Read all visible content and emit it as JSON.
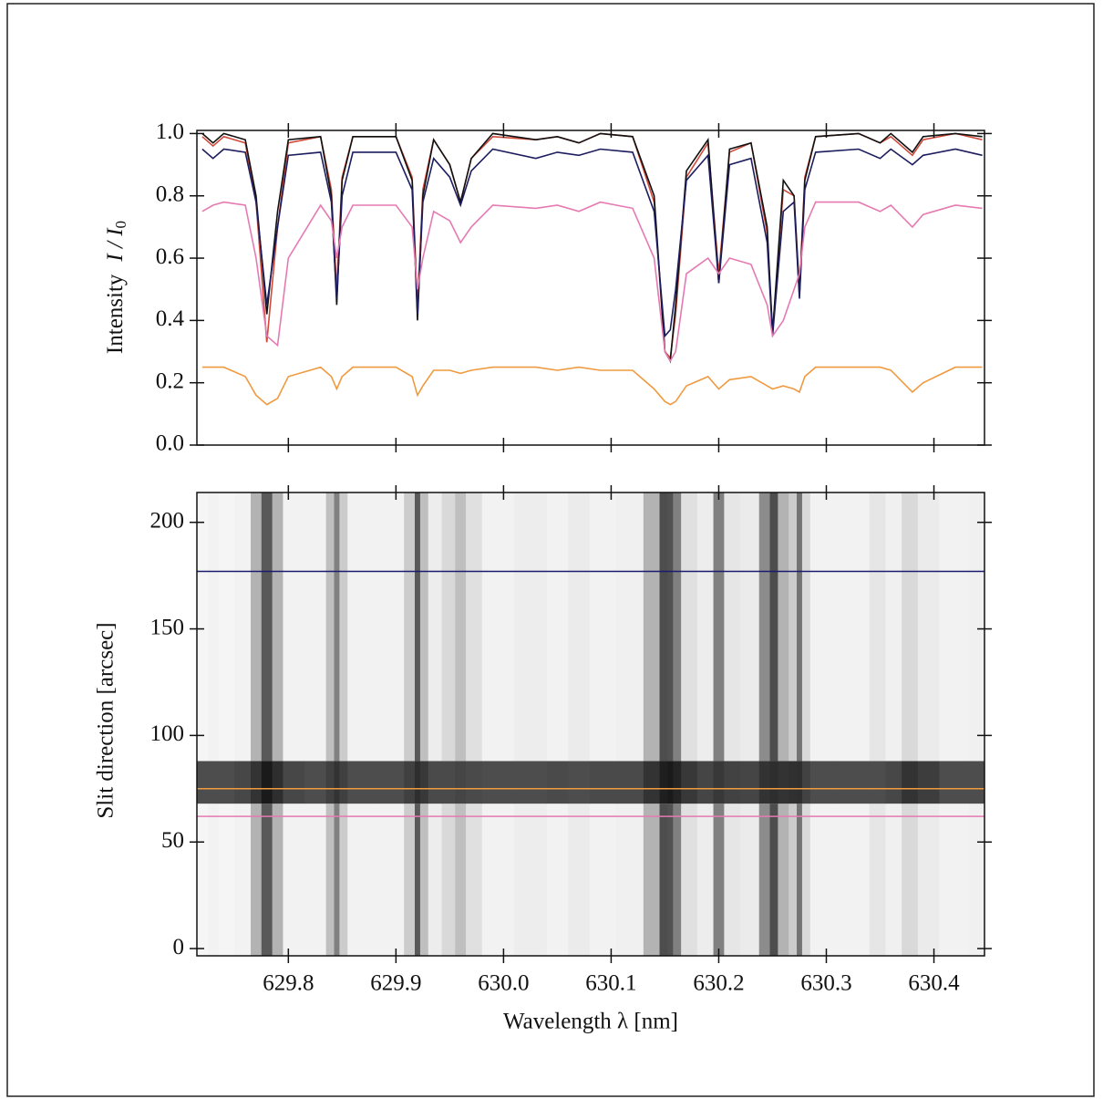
{
  "chart_data": [
    {
      "type": "line",
      "ylabel": "Intensity",
      "ylabel_symbol": "I / I",
      "ylabel_subscript": "0",
      "x": [
        629.72,
        629.73,
        629.74,
        629.76,
        629.77,
        629.78,
        629.79,
        629.8,
        629.83,
        629.84,
        629.845,
        629.85,
        629.86,
        629.9,
        629.915,
        629.92,
        629.925,
        629.935,
        629.95,
        629.96,
        629.97,
        629.99,
        630.03,
        630.05,
        630.07,
        630.09,
        630.12,
        630.14,
        630.15,
        630.155,
        630.16,
        630.17,
        630.19,
        630.2,
        630.21,
        630.23,
        630.245,
        630.25,
        630.26,
        630.27,
        630.275,
        630.28,
        630.29,
        630.33,
        630.35,
        630.36,
        630.38,
        630.39,
        630.42,
        630.445
      ],
      "series": [
        {
          "color": "#d04a3a",
          "values": [
            0.99,
            0.96,
            0.99,
            0.97,
            0.78,
            0.33,
            0.7,
            0.97,
            0.99,
            0.82,
            0.5,
            0.86,
            0.99,
            0.99,
            0.86,
            0.45,
            0.82,
            0.98,
            0.9,
            0.78,
            0.92,
            0.99,
            0.98,
            0.99,
            0.97,
            1.0,
            0.99,
            0.78,
            0.3,
            0.28,
            0.42,
            0.86,
            0.97,
            0.55,
            0.94,
            0.97,
            0.68,
            0.36,
            0.82,
            0.8,
            0.5,
            0.86,
            0.99,
            1.0,
            0.97,
            0.99,
            0.93,
            0.98,
            1.0,
            0.98
          ]
        },
        {
          "color": "#111111",
          "values": [
            1.0,
            0.97,
            1.0,
            0.98,
            0.8,
            0.42,
            0.75,
            0.98,
            0.99,
            0.8,
            0.45,
            0.85,
            0.99,
            0.99,
            0.85,
            0.4,
            0.8,
            0.98,
            0.9,
            0.78,
            0.92,
            1.0,
            0.98,
            0.99,
            0.97,
            1.0,
            0.99,
            0.8,
            0.3,
            0.27,
            0.45,
            0.88,
            0.98,
            0.52,
            0.95,
            0.97,
            0.7,
            0.36,
            0.85,
            0.8,
            0.48,
            0.85,
            0.99,
            1.0,
            0.97,
            1.0,
            0.94,
            0.99,
            1.0,
            0.99
          ]
        },
        {
          "color": "#1c1c5e",
          "values": [
            0.95,
            0.92,
            0.95,
            0.94,
            0.78,
            0.45,
            0.7,
            0.93,
            0.94,
            0.78,
            0.47,
            0.8,
            0.94,
            0.94,
            0.82,
            0.42,
            0.78,
            0.92,
            0.86,
            0.77,
            0.88,
            0.95,
            0.92,
            0.94,
            0.93,
            0.95,
            0.94,
            0.75,
            0.35,
            0.37,
            0.5,
            0.85,
            0.93,
            0.52,
            0.9,
            0.92,
            0.65,
            0.35,
            0.75,
            0.78,
            0.47,
            0.82,
            0.94,
            0.95,
            0.92,
            0.95,
            0.9,
            0.93,
            0.95,
            0.93
          ]
        },
        {
          "color": "#e57ab2",
          "values": [
            0.75,
            0.77,
            0.78,
            0.77,
            0.6,
            0.35,
            0.32,
            0.6,
            0.77,
            0.72,
            0.6,
            0.7,
            0.77,
            0.77,
            0.7,
            0.5,
            0.6,
            0.75,
            0.72,
            0.65,
            0.7,
            0.77,
            0.76,
            0.77,
            0.75,
            0.78,
            0.76,
            0.6,
            0.3,
            0.27,
            0.3,
            0.55,
            0.6,
            0.55,
            0.6,
            0.58,
            0.45,
            0.35,
            0.4,
            0.5,
            0.55,
            0.7,
            0.78,
            0.78,
            0.75,
            0.77,
            0.7,
            0.74,
            0.77,
            0.76
          ]
        },
        {
          "color": "#f09a40",
          "values": [
            0.25,
            0.25,
            0.25,
            0.22,
            0.16,
            0.13,
            0.15,
            0.22,
            0.25,
            0.22,
            0.18,
            0.22,
            0.25,
            0.25,
            0.22,
            0.16,
            0.19,
            0.24,
            0.24,
            0.23,
            0.24,
            0.25,
            0.25,
            0.24,
            0.25,
            0.24,
            0.24,
            0.18,
            0.14,
            0.13,
            0.14,
            0.19,
            0.22,
            0.18,
            0.21,
            0.22,
            0.19,
            0.18,
            0.19,
            0.18,
            0.17,
            0.22,
            0.25,
            0.25,
            0.25,
            0.24,
            0.17,
            0.2,
            0.25,
            0.25
          ]
        }
      ],
      "xlim": [
        629.715,
        630.447
      ],
      "xticks": [
        629.8,
        629.9,
        {
          "value": 630.0,
          "label": "630.0"
        },
        630.1,
        630.2,
        630.3,
        630.4
      ],
      "ylim": [
        0,
        1.01
      ],
      "yticks": [
        {
          "value": 0,
          "label": "0.0"
        },
        0.2,
        0.4,
        0.6,
        0.8,
        {
          "value": 1,
          "label": "1.0"
        }
      ]
    },
    {
      "type": "image",
      "ylabel": "Slit direction   [arcsec]",
      "xlabel": "Wavelength  λ  [nm]",
      "x": [
        629.72,
        629.73,
        629.74,
        629.76,
        629.77,
        629.78,
        629.79,
        629.8,
        629.83,
        629.84,
        629.845,
        629.85,
        629.86,
        629.9,
        629.915,
        629.92,
        629.925,
        629.935,
        629.95,
        629.96,
        629.97,
        629.99,
        630.03,
        630.05,
        630.07,
        630.09,
        630.12,
        630.14,
        630.15,
        630.155,
        630.16,
        630.17,
        630.19,
        630.2,
        630.21,
        630.23,
        630.245,
        630.25,
        630.26,
        630.27,
        630.275,
        630.28,
        630.29,
        630.33,
        630.35,
        630.36,
        630.38,
        630.39,
        630.42,
        630.445
      ],
      "rows": [
        {
          "y": [
            -3.4,
            68
          ],
          "values": [
            0.96,
            0.95,
            0.96,
            0.95,
            0.7,
            0.35,
            0.7,
            0.95,
            0.95,
            0.75,
            0.5,
            0.8,
            0.95,
            0.95,
            0.8,
            0.35,
            0.75,
            0.93,
            0.85,
            0.75,
            0.88,
            0.95,
            0.93,
            0.95,
            0.92,
            0.95,
            0.94,
            0.7,
            0.3,
            0.32,
            0.5,
            0.88,
            0.93,
            0.5,
            0.9,
            0.92,
            0.55,
            0.3,
            0.7,
            0.8,
            0.45,
            0.85,
            0.95,
            0.95,
            0.9,
            0.94,
            0.85,
            0.92,
            0.95,
            0.94
          ]
        },
        {
          "y": [
            68,
            88
          ],
          "values": [
            0.3,
            0.3,
            0.3,
            0.28,
            0.2,
            0.1,
            0.18,
            0.28,
            0.3,
            0.25,
            0.2,
            0.25,
            0.3,
            0.3,
            0.25,
            0.18,
            0.22,
            0.29,
            0.29,
            0.27,
            0.29,
            0.3,
            0.3,
            0.29,
            0.3,
            0.29,
            0.29,
            0.2,
            0.12,
            0.1,
            0.14,
            0.22,
            0.27,
            0.22,
            0.26,
            0.27,
            0.2,
            0.18,
            0.2,
            0.19,
            0.18,
            0.26,
            0.3,
            0.3,
            0.3,
            0.28,
            0.2,
            0.24,
            0.3,
            0.3
          ]
        },
        {
          "y": [
            88,
            214
          ],
          "values": [
            0.96,
            0.95,
            0.96,
            0.95,
            0.7,
            0.35,
            0.7,
            0.95,
            0.95,
            0.75,
            0.5,
            0.8,
            0.95,
            0.95,
            0.8,
            0.35,
            0.75,
            0.93,
            0.85,
            0.75,
            0.88,
            0.95,
            0.93,
            0.95,
            0.92,
            0.95,
            0.94,
            0.7,
            0.3,
            0.32,
            0.5,
            0.88,
            0.93,
            0.5,
            0.9,
            0.92,
            0.55,
            0.3,
            0.7,
            0.8,
            0.45,
            0.85,
            0.95,
            0.95,
            0.9,
            0.94,
            0.85,
            0.92,
            0.95,
            0.94
          ]
        }
      ],
      "hlines": [
        {
          "y": 177,
          "color": "#1c1c6e"
        },
        {
          "y": 75,
          "color": "#f09a40"
        },
        {
          "y": 62,
          "color": "#e57ab2"
        }
      ],
      "xlim": [
        629.715,
        630.447
      ],
      "xticks": [
        629.8,
        629.9,
        {
          "value": 630.0,
          "label": "630.0"
        },
        630.1,
        630.2,
        630.3,
        630.4
      ],
      "ylim": [
        -3.4,
        214
      ],
      "yticks": [
        0,
        50,
        100,
        150,
        200
      ]
    }
  ]
}
